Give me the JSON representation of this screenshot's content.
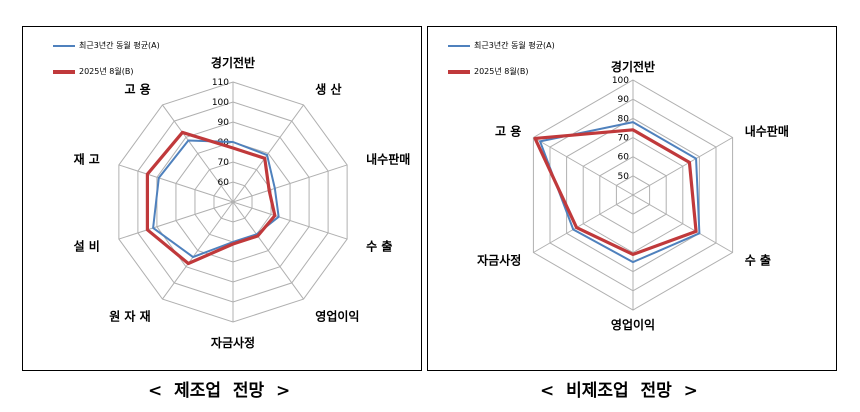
{
  "chart_data": [
    {
      "type": "radar",
      "title": "",
      "caption": "<  제조업  전망  >",
      "categories": [
        "경기전반",
        "생 산",
        "내수판매",
        "수 출",
        "영업이익",
        "자금사정",
        "원 자 재",
        "설 비",
        "재 고",
        "고 용"
      ],
      "tick_labels": [
        "60",
        "70",
        "80",
        "90",
        "100",
        "110"
      ],
      "rlim": [
        50,
        110
      ],
      "grid": true,
      "series": [
        {
          "name": "최근3년간 동월 평균(A)",
          "color": "#4f81bd",
          "values": [
            80,
            79,
            72,
            74,
            70,
            70,
            84,
            92,
            89,
            88
          ]
        },
        {
          "name": "2025년 8월(B)",
          "color": "#c0393b",
          "values": [
            77,
            77,
            69,
            72,
            71,
            71,
            88,
            95,
            95,
            93
          ]
        }
      ]
    },
    {
      "type": "radar",
      "title": "",
      "caption": "<  비제조업  전망  >",
      "categories": [
        "경기전반",
        "내수판매",
        "수 출",
        "영업이익",
        "자금사정",
        "고 용"
      ],
      "tick_labels": [
        "50",
        "60",
        "70",
        "80",
        "90",
        "100"
      ],
      "rlim": [
        40,
        100
      ],
      "grid": true,
      "series": [
        {
          "name": "최근3년간 동월 평균(A)",
          "color": "#4f81bd",
          "values": [
            78,
            78,
            80,
            75,
            76,
            96
          ]
        },
        {
          "name": "2025년 8월(B)",
          "color": "#c0393b",
          "values": [
            74,
            74,
            78,
            71,
            74,
            99
          ]
        }
      ]
    }
  ]
}
